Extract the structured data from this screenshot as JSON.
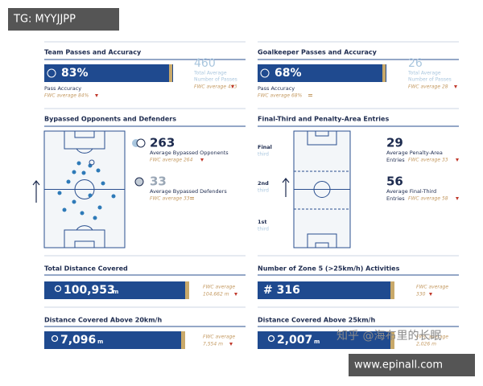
{
  "watermarks": {
    "top": "TG: MYYJJPP",
    "middle": "知乎 @海布里的长眠",
    "bottom": "www.epinall.com"
  },
  "sections": [
    {
      "title": "Team Passes and Accuracy",
      "value": "83%",
      "label": "Pass Accuracy",
      "average": "FWC average 84%",
      "total": "460",
      "total_label": [
        "Total Average",
        "Number of Passes"
      ],
      "total_average": "FWC average 473"
    },
    {
      "title": "Goalkeeper Passes and Accuracy",
      "value": "68%",
      "label": "Pass Accuracy",
      "average": "FWC average 68%",
      "total": "26",
      "total_label": [
        "Total Average",
        "Number of Passes"
      ],
      "total_average": "FWC average 28"
    },
    {
      "title": "Bypassed Opponents and Defenders",
      "items": [
        {
          "value": "263",
          "label": "Average Bypassed Opponents",
          "average": "FWC average 264"
        },
        {
          "value": "33",
          "label": "Average Bypassed Defenders",
          "average": "FWC average 33"
        }
      ]
    },
    {
      "title": "Final-Third and Penalty-Area Entries",
      "zones": [
        [
          "Final",
          "third"
        ],
        [
          "2nd",
          "third"
        ],
        [
          "1st",
          "third"
        ]
      ],
      "items": [
        {
          "value": "29",
          "label": [
            "Average Penalty-Area",
            "Entries"
          ],
          "average": "FWC average 33"
        },
        {
          "value": "56",
          "label": [
            "Average Final-Third",
            "Entries"
          ],
          "average": "FWC average 58"
        }
      ]
    },
    {
      "title": "Total Distance Covered",
      "value": "100,953",
      "unit": "m",
      "average": [
        "FWC average",
        "104,662 m"
      ]
    },
    {
      "title": "Number of Zone 5 (>25km/h) Activities",
      "value": "# 316",
      "average": [
        "FWC average",
        "330"
      ]
    },
    {
      "title": "Distance Covered Above 20km/h",
      "value": "7,096",
      "unit": "m",
      "average": [
        "FWC average",
        "7,554 m"
      ]
    },
    {
      "title": "Distance Covered Above 25km/h",
      "value": "2,007",
      "unit": "m",
      "average": [
        "FWC average",
        "2,026 m"
      ]
    }
  ]
}
